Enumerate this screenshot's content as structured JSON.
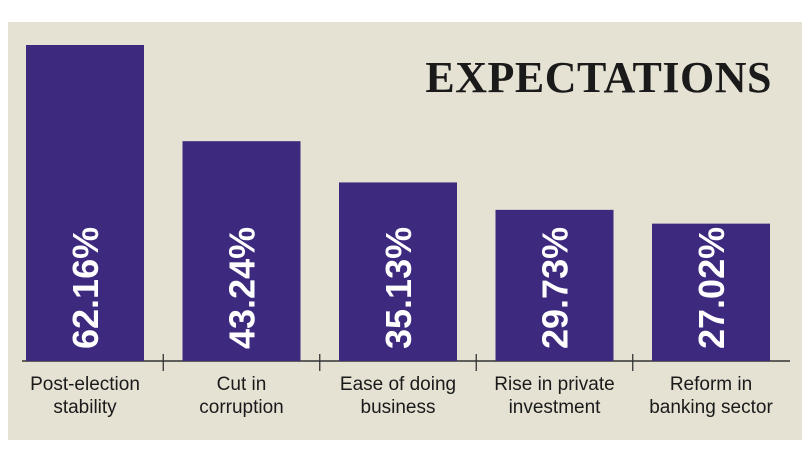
{
  "chart_data": {
    "type": "bar",
    "title": "EXPECTATIONS",
    "categories": [
      [
        "Post-election",
        "stability"
      ],
      [
        "Cut in",
        "corruption"
      ],
      [
        "Ease of doing",
        "business"
      ],
      [
        "Rise in private",
        "investment"
      ],
      [
        "Reform in",
        "banking sector"
      ]
    ],
    "values": [
      62.16,
      43.24,
      35.13,
      29.73,
      27.02
    ],
    "value_labels": [
      "62.16%",
      "43.24%",
      "35.13%",
      "29.73%",
      "27.02%"
    ],
    "ylim": [
      0,
      62.16
    ],
    "grid": false,
    "legend": "none",
    "colors": {
      "bar": "#3d2a7f",
      "bar_label": "#ffffff",
      "text": "#1a1a1a",
      "axis": "#333333",
      "background": "#e5e2d4"
    }
  }
}
